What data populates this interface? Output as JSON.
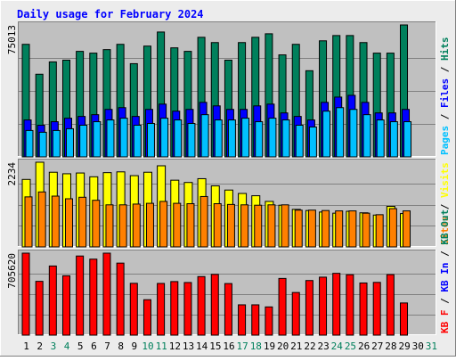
{
  "chart_data": {
    "type": "bar",
    "title": "Daily usage for February 2024",
    "colors": {
      "background": "#ececec",
      "plot": "#c0c0c0",
      "title": "#0000ff",
      "hits": "#00805c",
      "files": "#0000ff",
      "pages": "#00c0ff",
      "visits": "#ffff00",
      "sites": "#ff8000",
      "kb_in": "#ff0000",
      "kb_out": "#00805c",
      "weekend_day": "#00805c",
      "weekday": "#000000"
    },
    "x": {
      "labels": [
        "1",
        "2",
        "3",
        "4",
        "5",
        "6",
        "7",
        "8",
        "9",
        "10",
        "11",
        "12",
        "13",
        "14",
        "15",
        "16",
        "17",
        "18",
        "19",
        "20",
        "21",
        "22",
        "23",
        "24",
        "25",
        "26",
        "27",
        "28",
        "29",
        "30",
        "31"
      ],
      "weekend_days": [
        3,
        4,
        10,
        11,
        17,
        18,
        24,
        25,
        31
      ]
    },
    "panels": [
      {
        "id": "hits",
        "y_max_label": "75013",
        "y_max": 75013,
        "right_label": [
          {
            "text": "Pages",
            "color": "#00c0ff"
          },
          {
            "text": " / ",
            "color": "#000000"
          },
          {
            "text": "Files",
            "color": "#0000ff"
          },
          {
            "text": " / ",
            "color": "#000000"
          },
          {
            "text": "Hits",
            "color": "#00805c"
          }
        ],
        "series": [
          {
            "name": "Hits",
            "values": [
              64000,
              47000,
              54000,
              55000,
              60000,
              59000,
              61000,
              64000,
              53000,
              63000,
              71000,
              62000,
              60000,
              68000,
              65000,
              55000,
              65000,
              68000,
              70000,
              58000,
              64000,
              49000,
              66000,
              69000,
              69000,
              65000,
              59000,
              59000,
              75013
            ]
          },
          {
            "name": "Files",
            "values": [
              21000,
              18000,
              20000,
              22000,
              23000,
              24000,
              27000,
              28000,
              23000,
              27000,
              30000,
              26000,
              27000,
              31000,
              29000,
              27000,
              27000,
              29000,
              30000,
              25000,
              23000,
              21000,
              31000,
              34000,
              35000,
              31000,
              25000,
              25000,
              27000
            ]
          },
          {
            "name": "Pages",
            "values": [
              15000,
              14000,
              15000,
              16000,
              18000,
              20000,
              21000,
              22000,
              18000,
              19000,
              22000,
              21000,
              19000,
              24000,
              21000,
              21000,
              22000,
              20000,
              22000,
              21000,
              18000,
              17000,
              26000,
              28000,
              27000,
              24000,
              21000,
              20000,
              20000
            ]
          }
        ]
      },
      {
        "id": "visits",
        "y_max_label": "2234",
        "y_max": 2234,
        "right_label": [
          {
            "text": "Sites",
            "color": "#ff8000"
          },
          {
            "text": " / ",
            "color": "#000000"
          },
          {
            "text": "Visits",
            "color": "#ffff00"
          }
        ],
        "series": [
          {
            "name": "Visits",
            "values": [
              1780,
              2234,
              1970,
              1930,
              1950,
              1850,
              1960,
              1980,
              1880,
              1970,
              2140,
              1760,
              1700,
              1800,
              1610,
              1500,
              1410,
              1350,
              1200,
              1100,
              990,
              960,
              920,
              890,
              940,
              900,
              840,
              1070,
              880
            ]
          },
          {
            "name": "Sites",
            "values": [
              1320,
              1450,
              1340,
              1270,
              1310,
              1230,
              1110,
              1110,
              1130,
              1150,
              1200,
              1150,
              1140,
              1330,
              1140,
              1120,
              1110,
              1100,
              1110,
              1110,
              970,
              970,
              960,
              950,
              950,
              890,
              850,
              1010,
              950
            ]
          }
        ]
      },
      {
        "id": "kb",
        "y_max_label": "705620",
        "y_max": 705620,
        "right_label": [
          {
            "text": "KB F",
            "color": "#ff0000"
          },
          {
            "text": " / ",
            "color": "#000000"
          },
          {
            "text": "KB In",
            "color": "#0000ff"
          },
          {
            "text": " / ",
            "color": "#000000"
          },
          {
            "text": "KB Out",
            "color": "#00805c"
          }
        ],
        "series": [
          {
            "name": "KB F",
            "values": [
              705620,
              463000,
              595000,
              511000,
              681000,
              654000,
              705620,
              620000,
              446000,
              305000,
              445000,
              461000,
              453000,
              504000,
              523000,
              444000,
              261000,
              261000,
              243000,
              488000,
              367000,
              470000,
              499000,
              532000,
              520000,
              449000,
              454000,
              521000,
              277000
            ]
          }
        ]
      }
    ]
  }
}
